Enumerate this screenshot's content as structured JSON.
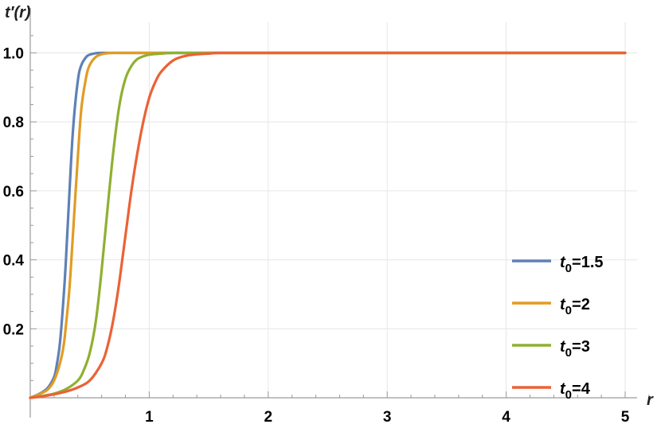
{
  "chart_data": {
    "type": "line",
    "title": "",
    "xlabel": "r",
    "ylabel": "t′(r)",
    "xlim": [
      0,
      5.2
    ],
    "ylim": [
      0,
      1.05
    ],
    "grid": true,
    "legend_position": "bottom-right",
    "x_ticks": [
      {
        "value": 1,
        "label": "1"
      },
      {
        "value": 2,
        "label": "2"
      },
      {
        "value": 3,
        "label": "3"
      },
      {
        "value": 4,
        "label": "4"
      },
      {
        "value": 5,
        "label": "5"
      }
    ],
    "y_ticks": [
      {
        "value": 0.2,
        "label": "0.2"
      },
      {
        "value": 0.4,
        "label": "0.4"
      },
      {
        "value": 0.6,
        "label": "0.6"
      },
      {
        "value": 0.8,
        "label": "0.8"
      },
      {
        "value": 1.0,
        "label": "1.0"
      }
    ],
    "series": [
      {
        "name": "t0=1.5",
        "name_base": "t",
        "name_sub": "0",
        "name_rest": "=1.5",
        "color": "#5e81b5",
        "x": [
          0,
          0.05,
          0.1,
          0.15,
          0.2,
          0.22,
          0.25,
          0.28,
          0.3,
          0.33,
          0.36,
          0.4,
          0.43,
          0.47,
          0.5,
          0.55,
          0.6,
          0.7,
          0.8,
          1.0,
          2.0,
          3.0,
          4.0,
          5.0
        ],
        "y": [
          0,
          0.007,
          0.016,
          0.03,
          0.06,
          0.09,
          0.16,
          0.29,
          0.4,
          0.6,
          0.78,
          0.92,
          0.965,
          0.988,
          0.995,
          0.999,
          1.0,
          1.0,
          1.0,
          1.0,
          1.0,
          1.0,
          1.0,
          1.0
        ]
      },
      {
        "name": "t0=2",
        "name_base": "t",
        "name_sub": "0",
        "name_rest": "=2",
        "color": "#e19c24",
        "x": [
          0,
          0.05,
          0.1,
          0.15,
          0.2,
          0.25,
          0.28,
          0.3,
          0.33,
          0.36,
          0.4,
          0.43,
          0.47,
          0.5,
          0.55,
          0.6,
          0.65,
          0.7,
          0.8,
          1.0,
          2.0,
          3.0,
          4.0,
          5.0
        ],
        "y": [
          0,
          0.006,
          0.014,
          0.025,
          0.05,
          0.1,
          0.15,
          0.21,
          0.32,
          0.48,
          0.7,
          0.84,
          0.93,
          0.965,
          0.988,
          0.996,
          0.999,
          1.0,
          1.0,
          1.0,
          1.0,
          1.0,
          1.0,
          1.0
        ]
      },
      {
        "name": "t0=3",
        "name_base": "t",
        "name_sub": "0",
        "name_rest": "=3",
        "color": "#8fb032",
        "x": [
          0,
          0.1,
          0.2,
          0.3,
          0.4,
          0.45,
          0.5,
          0.55,
          0.6,
          0.65,
          0.7,
          0.75,
          0.8,
          0.85,
          0.9,
          0.95,
          1.0,
          1.1,
          1.2,
          1.3,
          1.5,
          2.0,
          3.0,
          4.0,
          5.0
        ],
        "y": [
          0,
          0.005,
          0.012,
          0.025,
          0.05,
          0.08,
          0.13,
          0.22,
          0.37,
          0.55,
          0.72,
          0.85,
          0.925,
          0.962,
          0.982,
          0.99,
          0.995,
          0.998,
          1.0,
          1.0,
          1.0,
          1.0,
          1.0,
          1.0,
          1.0
        ]
      },
      {
        "name": "t0=4",
        "name_base": "t",
        "name_sub": "0",
        "name_rest": "=4",
        "color": "#eb6235",
        "x": [
          0,
          0.1,
          0.2,
          0.3,
          0.4,
          0.5,
          0.6,
          0.65,
          0.7,
          0.75,
          0.8,
          0.85,
          0.9,
          0.95,
          1.0,
          1.05,
          1.1,
          1.2,
          1.3,
          1.4,
          1.5,
          1.6,
          2.0,
          3.0,
          4.0,
          5.0
        ],
        "y": [
          0,
          0.004,
          0.01,
          0.018,
          0.03,
          0.05,
          0.1,
          0.15,
          0.23,
          0.34,
          0.47,
          0.6,
          0.71,
          0.8,
          0.87,
          0.915,
          0.945,
          0.978,
          0.991,
          0.996,
          0.998,
          1.0,
          1.0,
          1.0,
          1.0,
          1.0
        ]
      }
    ]
  }
}
